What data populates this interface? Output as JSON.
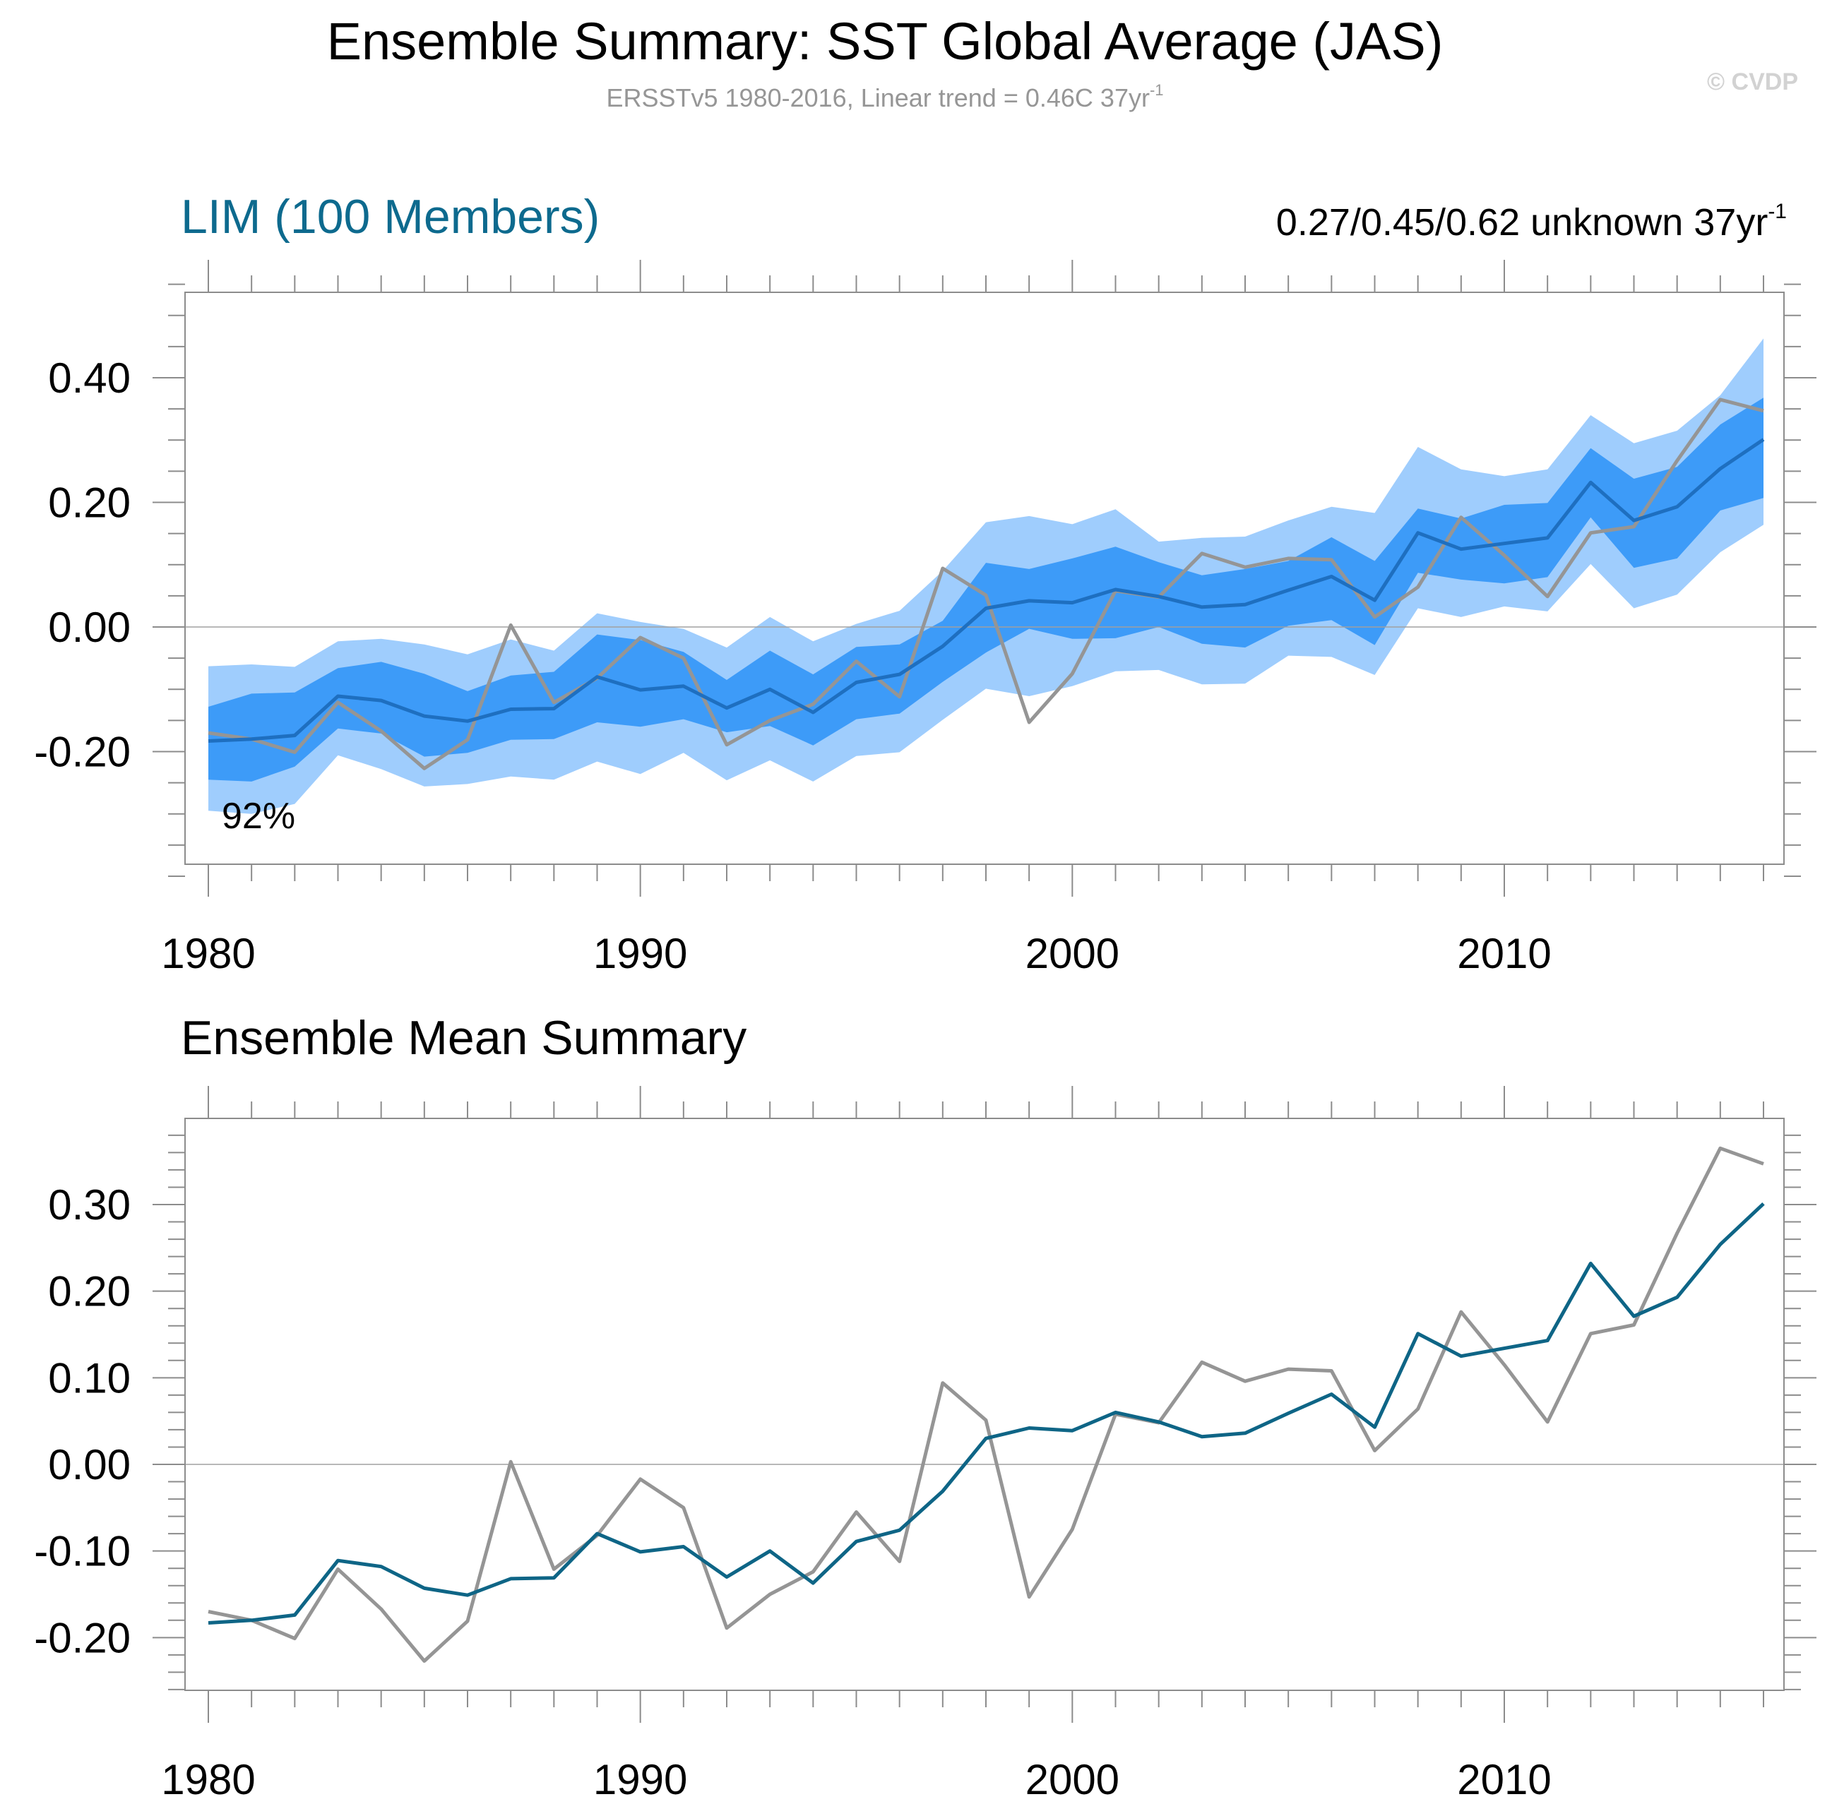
{
  "figure": {
    "title": "Ensemble Summary: SST Global Average (JAS)",
    "subtitle": "ERSSTv5 1980-2016, Linear trend = 0.46C 37yr",
    "subtitle_sup": "-1",
    "watermark": "© CVDP"
  },
  "colors": {
    "band_outer": "#9fcdfd",
    "band_inner": "#3d9bf8",
    "ensemble_mean_top": "#1e6fc0",
    "ensemble_mean_bottom": "#0e6586",
    "observed": "#959595",
    "panel_title": "#0d6a8e"
  },
  "chart_data": [
    {
      "type": "area",
      "title": "LIM (100 Members)",
      "trend_label": "0.27/0.45/0.62 unknown 37yr",
      "trend_label_sup": "-1",
      "annotation": "92%",
      "xlim": [
        1979.5,
        2016.5
      ],
      "ylim": [
        -0.4,
        0.55
      ],
      "x_ticks": [
        1980,
        1990,
        2000,
        2010
      ],
      "x_tick_labels": [
        "1980",
        "1990",
        "2000",
        "2010"
      ],
      "y_ticks": [
        -0.2,
        0.0,
        0.2,
        0.4
      ],
      "y_tick_labels": [
        "-0.20",
        "0.00",
        "0.20",
        "0.40"
      ],
      "x": [
        1980,
        1981,
        1982,
        1983,
        1984,
        1985,
        1986,
        1987,
        1988,
        1989,
        1990,
        1991,
        1992,
        1993,
        1994,
        1995,
        1996,
        1997,
        1998,
        1999,
        2000,
        2001,
        2002,
        2003,
        2004,
        2005,
        2006,
        2007,
        2008,
        2009,
        2010,
        2011,
        2012,
        2013,
        2014,
        2015,
        2016
      ],
      "series": [
        {
          "name": "outer_upper",
          "values": [
            -0.063,
            -0.06,
            -0.064,
            -0.023,
            -0.019,
            -0.028,
            -0.044,
            -0.02,
            -0.038,
            0.022,
            0.008,
            -0.003,
            -0.033,
            0.016,
            -0.023,
            0.005,
            0.026,
            0.09,
            0.168,
            0.178,
            0.165,
            0.189,
            0.137,
            0.143,
            0.145,
            0.171,
            0.193,
            0.183,
            0.289,
            0.253,
            0.242,
            0.253,
            0.34,
            0.295,
            0.315,
            0.372,
            0.463
          ]
        },
        {
          "name": "inner_upper",
          "values": [
            -0.128,
            -0.107,
            -0.105,
            -0.066,
            -0.056,
            -0.075,
            -0.103,
            -0.078,
            -0.072,
            -0.012,
            -0.021,
            -0.04,
            -0.085,
            -0.038,
            -0.076,
            -0.032,
            -0.028,
            0.01,
            0.103,
            0.093,
            0.11,
            0.129,
            0.104,
            0.083,
            0.093,
            0.106,
            0.144,
            0.106,
            0.19,
            0.174,
            0.196,
            0.199,
            0.287,
            0.238,
            0.257,
            0.325,
            0.368
          ]
        },
        {
          "name": "ensemble_mean",
          "values": [
            -0.183,
            -0.18,
            -0.174,
            -0.111,
            -0.118,
            -0.143,
            -0.151,
            -0.132,
            -0.131,
            -0.08,
            -0.101,
            -0.095,
            -0.13,
            -0.1,
            -0.137,
            -0.089,
            -0.076,
            -0.031,
            0.03,
            0.042,
            0.039,
            0.06,
            0.049,
            0.032,
            0.036,
            0.059,
            0.081,
            0.043,
            0.151,
            0.125,
            0.134,
            0.143,
            0.232,
            0.171,
            0.193,
            0.254,
            0.301
          ]
        },
        {
          "name": "inner_lower",
          "values": [
            -0.245,
            -0.248,
            -0.224,
            -0.163,
            -0.171,
            -0.208,
            -0.202,
            -0.181,
            -0.18,
            -0.153,
            -0.16,
            -0.148,
            -0.169,
            -0.159,
            -0.19,
            -0.148,
            -0.139,
            -0.088,
            -0.041,
            -0.003,
            -0.019,
            -0.018,
            0.0,
            -0.027,
            -0.033,
            0.002,
            0.011,
            -0.029,
            0.087,
            0.076,
            0.07,
            0.08,
            0.176,
            0.095,
            0.11,
            0.187,
            0.207
          ]
        },
        {
          "name": "outer_lower",
          "values": [
            -0.295,
            -0.3,
            -0.284,
            -0.206,
            -0.228,
            -0.256,
            -0.252,
            -0.24,
            -0.245,
            -0.216,
            -0.236,
            -0.202,
            -0.246,
            -0.214,
            -0.248,
            -0.207,
            -0.201,
            -0.149,
            -0.099,
            -0.111,
            -0.095,
            -0.071,
            -0.069,
            -0.092,
            -0.091,
            -0.046,
            -0.048,
            -0.077,
            0.03,
            0.016,
            0.033,
            0.025,
            0.101,
            0.03,
            0.052,
            0.12,
            0.164
          ]
        },
        {
          "name": "observed",
          "values": [
            -0.17,
            -0.18,
            -0.201,
            -0.121,
            -0.167,
            -0.227,
            -0.181,
            0.003,
            -0.121,
            -0.082,
            -0.017,
            -0.05,
            -0.189,
            -0.15,
            -0.124,
            -0.055,
            -0.112,
            0.094,
            0.051,
            -0.153,
            -0.075,
            0.058,
            0.048,
            0.118,
            0.096,
            0.11,
            0.108,
            0.016,
            0.064,
            0.176,
            0.115,
            0.049,
            0.151,
            0.161,
            0.267,
            0.365,
            0.347
          ]
        }
      ]
    },
    {
      "type": "line",
      "title": "Ensemble Mean Summary",
      "xlim": [
        1979.5,
        2016.5
      ],
      "ylim": [
        -0.26,
        0.385
      ],
      "x_ticks": [
        1980,
        1990,
        2000,
        2010
      ],
      "x_tick_labels": [
        "1980",
        "1990",
        "2000",
        "2010"
      ],
      "y_ticks": [
        -0.2,
        -0.1,
        0.0,
        0.1,
        0.2,
        0.3
      ],
      "y_tick_labels": [
        "-0.20",
        "-0.10",
        "0.00",
        "0.10",
        "0.20",
        "0.30"
      ],
      "x": [
        1980,
        1981,
        1982,
        1983,
        1984,
        1985,
        1986,
        1987,
        1988,
        1989,
        1990,
        1991,
        1992,
        1993,
        1994,
        1995,
        1996,
        1997,
        1998,
        1999,
        2000,
        2001,
        2002,
        2003,
        2004,
        2005,
        2006,
        2007,
        2008,
        2009,
        2010,
        2011,
        2012,
        2013,
        2014,
        2015,
        2016
      ],
      "series": [
        {
          "name": "ensemble_mean",
          "values": [
            -0.183,
            -0.18,
            -0.174,
            -0.111,
            -0.118,
            -0.143,
            -0.151,
            -0.132,
            -0.131,
            -0.08,
            -0.101,
            -0.095,
            -0.13,
            -0.1,
            -0.137,
            -0.089,
            -0.076,
            -0.031,
            0.03,
            0.042,
            0.039,
            0.06,
            0.049,
            0.032,
            0.036,
            0.059,
            0.081,
            0.043,
            0.151,
            0.125,
            0.134,
            0.143,
            0.232,
            0.171,
            0.193,
            0.254,
            0.301
          ]
        },
        {
          "name": "observed",
          "values": [
            -0.17,
            -0.18,
            -0.201,
            -0.121,
            -0.167,
            -0.227,
            -0.181,
            0.003,
            -0.121,
            -0.082,
            -0.017,
            -0.05,
            -0.189,
            -0.15,
            -0.124,
            -0.055,
            -0.112,
            0.094,
            0.051,
            -0.153,
            -0.075,
            0.058,
            0.048,
            0.118,
            0.096,
            0.11,
            0.108,
            0.016,
            0.064,
            0.176,
            0.115,
            0.049,
            0.151,
            0.161,
            0.267,
            0.365,
            0.347
          ]
        }
      ]
    }
  ]
}
